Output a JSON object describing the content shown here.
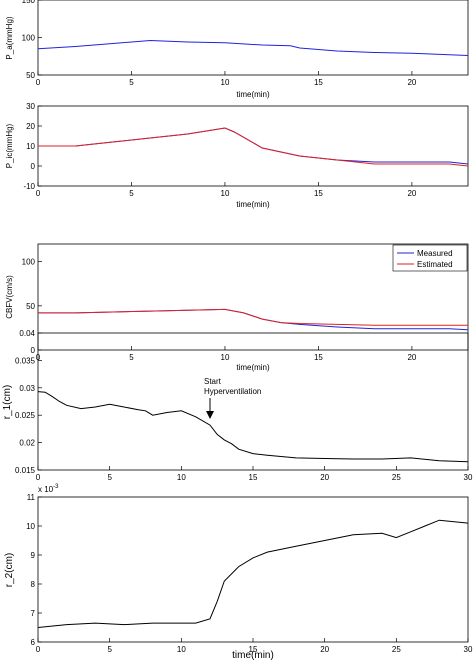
{
  "chart_data": [
    {
      "type": "line",
      "id": "pa",
      "ylabel": "P_a(mmHg)",
      "xlabel": "time(min)",
      "xlim": [
        0,
        23
      ],
      "ylim": [
        50,
        150
      ],
      "xticks": [
        "0",
        "5",
        "10",
        "15",
        "20"
      ],
      "yticks": [
        "50",
        "100",
        "150"
      ],
      "series": [
        {
          "color": "#2222dd",
          "x": [
            0,
            2,
            4,
            6,
            8,
            10,
            12,
            13.5,
            14,
            16,
            18,
            20,
            22,
            23
          ],
          "y": [
            85,
            88,
            92,
            96,
            94,
            93,
            90,
            89,
            86,
            82,
            80,
            79,
            77,
            76
          ]
        }
      ]
    },
    {
      "type": "line",
      "id": "pic",
      "ylabel": "P_ic(mmHg)",
      "xlabel": "time(min)",
      "xlim": [
        0,
        23
      ],
      "ylim": [
        -10,
        30
      ],
      "xticks": [
        "0",
        "5",
        "10",
        "15",
        "20"
      ],
      "yticks": [
        "-10",
        "0",
        "10",
        "20",
        "30"
      ],
      "series": [
        {
          "color": "#2222dd",
          "x": [
            0,
            2,
            4,
            6,
            8,
            10,
            10.5,
            12,
            14,
            16,
            18,
            20,
            22,
            23
          ],
          "y": [
            10,
            10,
            12,
            14,
            16,
            19,
            17,
            9,
            5,
            3,
            2,
            2,
            2,
            1
          ]
        },
        {
          "color": "#dd2222",
          "x": [
            0,
            2,
            4,
            6,
            8,
            10,
            10.5,
            12,
            14,
            16,
            18,
            20,
            22,
            23
          ],
          "y": [
            10,
            10,
            12,
            14,
            16,
            19,
            17,
            9,
            5,
            3,
            1,
            1,
            1,
            0
          ]
        }
      ]
    },
    {
      "type": "line",
      "id": "cbfv",
      "ylabel": "CBFV(cm/s)",
      "xlabel": "time(min)",
      "xlim": [
        0,
        23
      ],
      "ylim": [
        0,
        120
      ],
      "xticks": [
        "0",
        "5",
        "10",
        "15",
        "20"
      ],
      "yticks": [
        "0",
        "50",
        "100"
      ],
      "legend": {
        "position": "top-right",
        "entries": [
          "Measured",
          "Estimated"
        ]
      },
      "series": [
        {
          "color": "#2222dd",
          "x": [
            0,
            2,
            4,
            6,
            8,
            10,
            11,
            12,
            13,
            14,
            16,
            18,
            20,
            22,
            23
          ],
          "y": [
            42,
            42,
            43,
            44,
            45,
            46,
            42,
            35,
            31,
            29,
            26,
            24,
            24,
            24,
            23
          ]
        },
        {
          "color": "#dd2222",
          "x": [
            0,
            2,
            4,
            6,
            8,
            10,
            11,
            12,
            13,
            14,
            16,
            18,
            20,
            22,
            23
          ],
          "y": [
            42,
            42,
            43,
            44,
            45,
            46,
            42,
            35,
            31,
            30,
            29,
            28,
            28,
            28,
            28
          ]
        }
      ]
    },
    {
      "type": "line",
      "id": "r1",
      "ylabel": "r_1(cm)",
      "xlabel": "",
      "xlim": [
        0,
        30
      ],
      "ylim": [
        0.015,
        0.04
      ],
      "xticks": [
        "0",
        "5",
        "10",
        "15",
        "20",
        "25",
        "30"
      ],
      "yticks": [
        "0.015",
        "0.02",
        "0.025",
        "0.03",
        "0.035",
        "0.04"
      ],
      "annotation": {
        "text": [
          "Start",
          "Hyperventilation"
        ],
        "x": 12,
        "y": 0.0245
      },
      "series": [
        {
          "color": "#000000",
          "x": [
            0,
            0.5,
            1,
            1.5,
            2,
            3,
            4,
            5,
            6,
            7,
            7.5,
            8,
            9,
            10,
            11,
            12,
            12.5,
            13,
            13.5,
            14,
            15,
            16,
            18,
            20,
            22,
            24,
            26,
            28,
            30
          ],
          "y": [
            0.0293,
            0.0292,
            0.0284,
            0.0275,
            0.0268,
            0.0262,
            0.0265,
            0.027,
            0.0265,
            0.026,
            0.0258,
            0.025,
            0.0255,
            0.0258,
            0.0247,
            0.0232,
            0.0215,
            0.0205,
            0.0198,
            0.0188,
            0.018,
            0.0177,
            0.0172,
            0.0171,
            0.017,
            0.017,
            0.0172,
            0.0167,
            0.0165
          ]
        }
      ]
    },
    {
      "type": "line",
      "id": "r2",
      "ylabel": "r_2(cm)",
      "xlabel": "time(min)",
      "xlim": [
        0,
        30
      ],
      "ylim": [
        6,
        11
      ],
      "exponent_label": "x 10",
      "exponent_power": "-3",
      "xticks": [
        "0",
        "5",
        "10",
        "15",
        "20",
        "25",
        "30"
      ],
      "yticks": [
        "6",
        "7",
        "8",
        "9",
        "10",
        "11"
      ],
      "series": [
        {
          "color": "#000000",
          "x": [
            0,
            2,
            4,
            6,
            8,
            10,
            11,
            12,
            12.5,
            13,
            14,
            15,
            16,
            18,
            20,
            22,
            24,
            25,
            26,
            27,
            28,
            30
          ],
          "y": [
            6.5,
            6.6,
            6.65,
            6.6,
            6.65,
            6.65,
            6.65,
            6.8,
            7.4,
            8.1,
            8.6,
            8.9,
            9.1,
            9.3,
            9.5,
            9.7,
            9.75,
            9.6,
            9.8,
            10.0,
            10.2,
            10.1
          ]
        }
      ]
    }
  ]
}
